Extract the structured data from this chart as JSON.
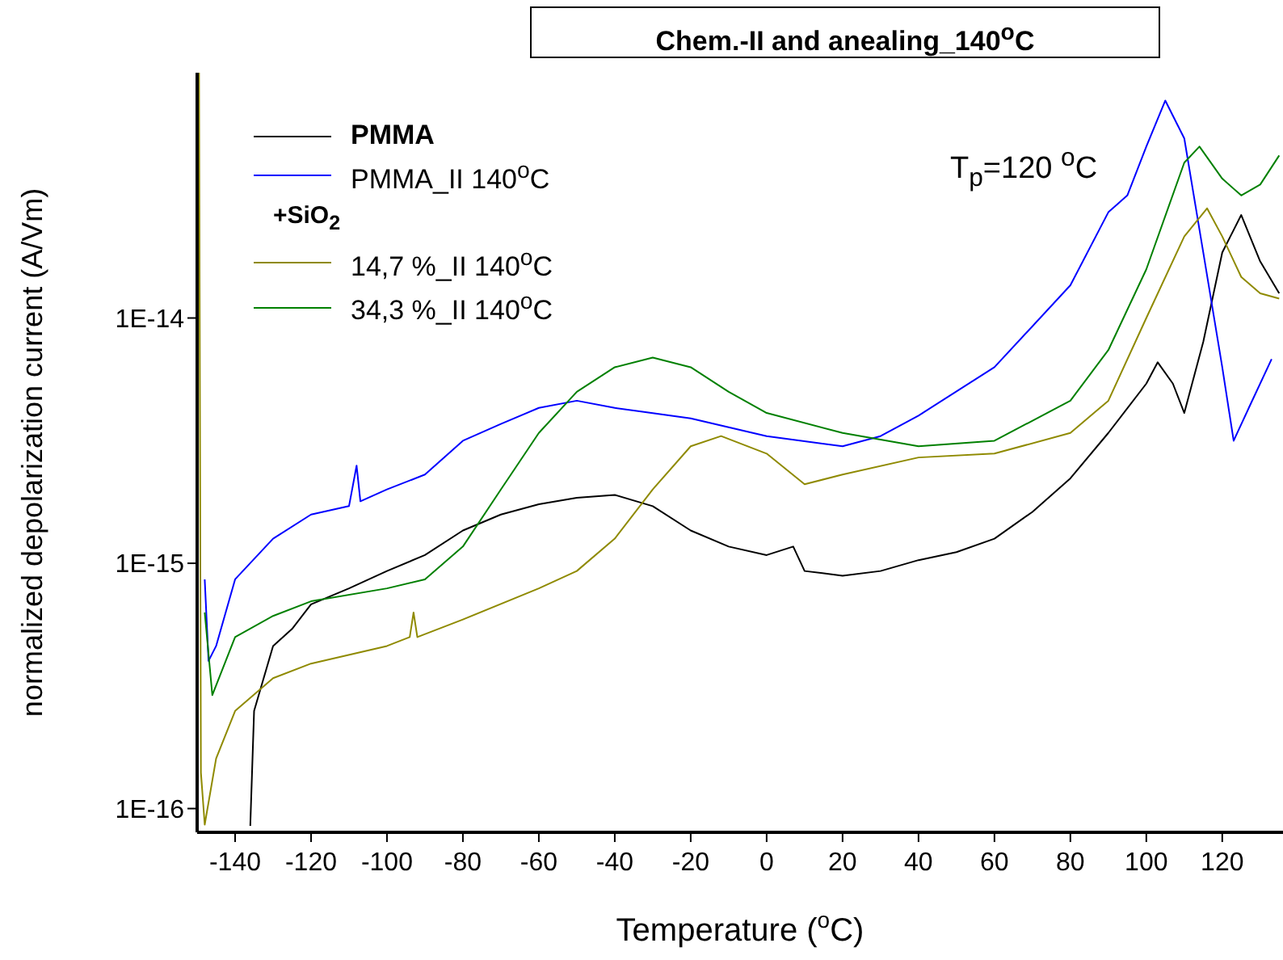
{
  "chart_data": {
    "type": "line",
    "title": "Chem.-II  and anealing_140$^{o}$C",
    "xlabel": "Temperature ($^{o}$C)",
    "ylabel": "normalized depolarization current (A/Vm)",
    "annotations": [
      "T$_{p}$=120 $^{o}$C",
      "+SiO$_{2}$"
    ],
    "log": "y",
    "grid": false,
    "legend": "top left",
    "marker": "none",
    "xlim": [
      -150,
      136
    ],
    "xticks": [
      -140,
      -120,
      -100,
      -80,
      -60,
      -40,
      -20,
      0,
      20,
      40,
      60,
      80,
      100,
      120
    ],
    "ylim": [
      8e-17,
      1e-13
    ],
    "yticks": [
      {
        "value": 1e-16,
        "label": "1E-16"
      },
      {
        "value": 1e-15,
        "label": "1E-15"
      },
      {
        "value": 1e-14,
        "label": "1E-14"
      }
    ],
    "series": [
      {
        "name": "PMMA",
        "color": "#000000",
        "x": [
          -136,
          -135,
          -130,
          -125,
          -120,
          -110,
          -100,
          -90,
          -80,
          -70,
          -60,
          -50,
          -40,
          -30,
          -20,
          -10,
          0,
          7,
          10,
          20,
          30,
          40,
          50,
          60,
          70,
          80,
          90,
          100,
          103,
          107,
          110,
          115,
          120,
          125,
          130,
          135
        ],
        "values": [
          8.5e-17,
          2.5e-16,
          4.6e-16,
          5.4e-16,
          6.8e-16,
          7.9e-16,
          9.3e-16,
          1.08e-15,
          1.36e-15,
          1.58e-15,
          1.74e-15,
          1.85e-15,
          1.9e-15,
          1.71e-15,
          1.36e-15,
          1.17e-15,
          1.08e-15,
          1.17e-15,
          9.3e-16,
          8.9e-16,
          9.3e-16,
          1.03e-15,
          1.11e-15,
          1.26e-15,
          1.62e-15,
          2.22e-15,
          3.4e-15,
          5.4e-15,
          6.6e-15,
          5.4e-15,
          4.1e-15,
          8e-15,
          1.85e-14,
          2.63e-14,
          1.7e-14,
          1.26e-14
        ]
      },
      {
        "name": "PMMA_II  140$^{o}$C",
        "color": "#0000ff",
        "x": [
          -148,
          -147,
          -145,
          -140,
          -130,
          -120,
          -110,
          -108,
          -107,
          -100,
          -90,
          -80,
          -70,
          -60,
          -50,
          -40,
          -20,
          0,
          20,
          30,
          40,
          60,
          80,
          90,
          95,
          100,
          105,
          110,
          115,
          120,
          123,
          127,
          133
        ],
        "values": [
          8.6e-16,
          4e-16,
          4.6e-16,
          8.6e-16,
          1.26e-15,
          1.58e-15,
          1.71e-15,
          2.5e-15,
          1.79e-15,
          2e-15,
          2.3e-15,
          3.16e-15,
          3.7e-15,
          4.3e-15,
          4.6e-15,
          4.3e-15,
          3.9e-15,
          3.3e-15,
          3e-15,
          3.3e-15,
          4e-15,
          6.3e-15,
          1.36e-14,
          2.7e-14,
          3.16e-14,
          5e-14,
          7.7e-14,
          5.4e-14,
          1.85e-14,
          6.3e-15,
          3.16e-15,
          4.3e-15,
          6.8e-15
        ]
      },
      {
        "name": "14,7 %_II  140$^{o}$C",
        "color": "#8f8a00",
        "x": [
          -149.5,
          -149,
          -148,
          -145,
          -140,
          -130,
          -120,
          -100,
          -94,
          -93,
          -92,
          -80,
          -60,
          -50,
          -40,
          -30,
          -20,
          -12,
          0,
          10,
          20,
          40,
          60,
          80,
          90,
          100,
          110,
          116,
          120,
          125,
          130,
          135
        ],
        "values": [
          1e-13,
          1.4e-16,
          8.6e-17,
          1.6e-16,
          2.5e-16,
          3.4e-16,
          3.9e-16,
          4.6e-16,
          5e-16,
          6.3e-16,
          5e-16,
          5.9e-16,
          7.9e-16,
          9.3e-16,
          1.26e-15,
          2e-15,
          3e-15,
          3.3e-15,
          2.8e-15,
          2.1e-15,
          2.3e-15,
          2.7e-15,
          2.8e-15,
          3.4e-15,
          4.6e-15,
          1e-14,
          2.15e-14,
          2.8e-14,
          2.15e-14,
          1.47e-14,
          1.26e-14,
          1.2e-14
        ]
      },
      {
        "name": "34,3 %_II  140$^{o}$C",
        "color": "#008000",
        "x": [
          -148,
          -146,
          -140,
          -130,
          -120,
          -100,
          -90,
          -80,
          -70,
          -60,
          -50,
          -40,
          -30,
          -20,
          -10,
          0,
          20,
          40,
          60,
          80,
          90,
          100,
          110,
          114,
          120,
          125,
          130,
          135
        ],
        "values": [
          6.3e-16,
          2.9e-16,
          5e-16,
          6.1e-16,
          7e-16,
          7.9e-16,
          8.6e-16,
          1.17e-15,
          2e-15,
          3.4e-15,
          5e-15,
          6.3e-15,
          6.9e-15,
          6.3e-15,
          5e-15,
          4.1e-15,
          3.4e-15,
          3e-15,
          3.16e-15,
          4.6e-15,
          7.4e-15,
          1.58e-14,
          4.3e-14,
          5e-14,
          3.7e-14,
          3.16e-14,
          3.5e-14,
          4.6e-14
        ]
      }
    ]
  }
}
